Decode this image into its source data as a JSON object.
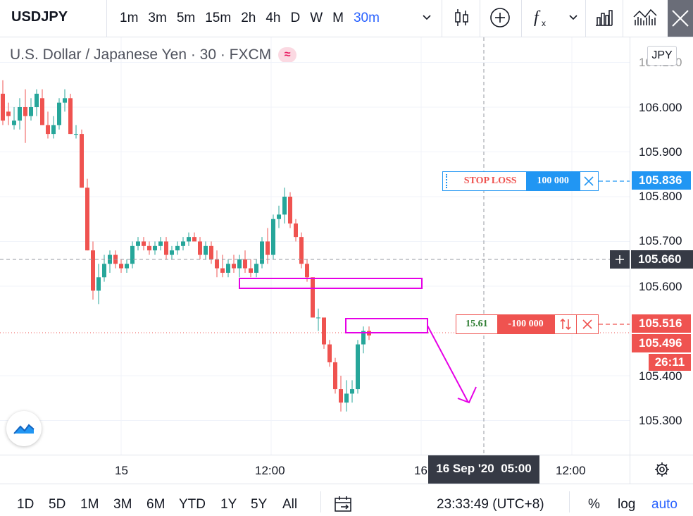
{
  "toolbar": {
    "symbol": "USDJPY",
    "intervals": [
      "1m",
      "3m",
      "5m",
      "15m",
      "2h",
      "4h",
      "D",
      "W",
      "M",
      "30m"
    ]
  },
  "legend": {
    "title": "U.S. Dollar / Japanese Yen · 30 · FXCM",
    "badge": "≈"
  },
  "price_axis": {
    "currency": "JPY",
    "ticks": [
      "106.000",
      "105.900",
      "105.800",
      "105.700",
      "105.600",
      "105.400",
      "105.300"
    ],
    "partial_tick": "106.100",
    "stop_loss_price": "105.836",
    "crosshair_price": "105.660",
    "position_price": "105.516",
    "last_price": "105.496",
    "countdown": "26:11"
  },
  "time_axis": {
    "ticks": [
      "15",
      "12:00",
      "16",
      "12:00"
    ],
    "crosshair_label": "16 Sep '20  05:00"
  },
  "orders": {
    "stop_loss": {
      "label": "STOP LOSS",
      "qty": "100 000"
    },
    "position": {
      "pnl": "15.61",
      "qty": "-100 000"
    }
  },
  "bottom": {
    "ranges": [
      "1D",
      "5D",
      "1M",
      "3M",
      "6M",
      "YTD",
      "1Y",
      "5Y",
      "All"
    ],
    "clock": "23:33:49 (UTC+8)",
    "pct": "%",
    "log": "log",
    "auto": "auto"
  },
  "colors": {
    "up": "#26a69a",
    "down": "#ef5350",
    "accent": "#2962ff",
    "annotation": "#e600e6",
    "stop_loss": "#2196f3"
  },
  "icons": [
    "chevron-down-icon",
    "candles-icon",
    "plus-circle-icon",
    "fx-icon",
    "bar-chart-icon",
    "chart-style-icon",
    "fullscreen-icon",
    "watermark-logo-icon",
    "crosshair-plus-icon",
    "calendar-goto-icon",
    "settings-gear-icon",
    "close-icon",
    "reverse-icon"
  ]
}
